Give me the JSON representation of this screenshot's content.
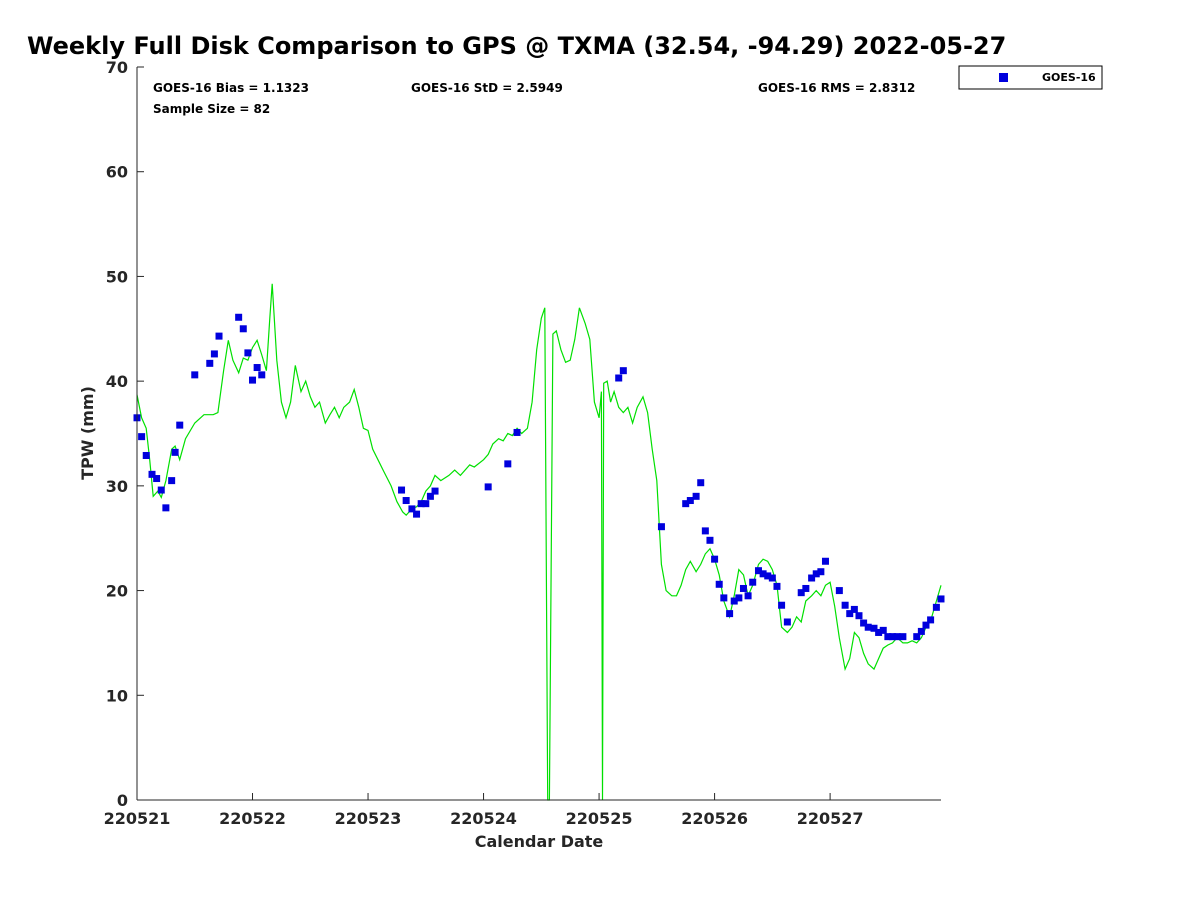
{
  "chart_data": {
    "type": "scatter",
    "title": "Weekly Full Disk Comparison to GPS @ TXMA (32.54, -94.29) 2022-05-27",
    "xlabel": "Calendar Date",
    "ylabel": "TPW (mm)",
    "xlim": [
      220521,
      220527.96
    ],
    "ylim": [
      0,
      70
    ],
    "yticks": [
      0,
      10,
      20,
      30,
      40,
      50,
      60,
      70
    ],
    "xticks": [
      {
        "value": 220521,
        "label": "220521"
      },
      {
        "value": 220522,
        "label": "220522"
      },
      {
        "value": 220523,
        "label": "220523"
      },
      {
        "value": 220524,
        "label": "220524"
      },
      {
        "value": 220525,
        "label": "220525"
      },
      {
        "value": 220526,
        "label": "220526"
      },
      {
        "value": 220527,
        "label": "220527"
      }
    ],
    "grid": false,
    "legend_position": "top-right",
    "stats": {
      "bias": "GOES-16 Bias = 1.1323",
      "std": "GOES-16 StD = 2.5949",
      "rms": "GOES-16 RMS = 2.8312",
      "sample_size": "Sample Size = 82"
    },
    "series": [
      {
        "name": "GOES-16",
        "kind": "scatter",
        "color": "#0000dd",
        "points": [
          [
            220521.0,
            36.5
          ],
          [
            220521.04,
            34.7
          ],
          [
            220521.08,
            32.9
          ],
          [
            220521.13,
            31.1
          ],
          [
            220521.17,
            30.7
          ],
          [
            220521.21,
            29.6
          ],
          [
            220521.25,
            27.9
          ],
          [
            220521.3,
            30.5
          ],
          [
            220521.33,
            33.2
          ],
          [
            220521.37,
            35.8
          ],
          [
            220521.5,
            40.6
          ],
          [
            220521.63,
            41.7
          ],
          [
            220521.67,
            42.6
          ],
          [
            220521.71,
            44.3
          ],
          [
            220521.88,
            46.1
          ],
          [
            220521.92,
            45.0
          ],
          [
            220521.96,
            42.7
          ],
          [
            220522.0,
            40.1
          ],
          [
            220522.04,
            41.3
          ],
          [
            220522.08,
            40.6
          ],
          [
            220523.29,
            29.6
          ],
          [
            220523.33,
            28.6
          ],
          [
            220523.38,
            27.8
          ],
          [
            220523.42,
            27.3
          ],
          [
            220523.46,
            28.3
          ],
          [
            220523.5,
            28.3
          ],
          [
            220523.54,
            29.0
          ],
          [
            220523.58,
            29.5
          ],
          [
            220524.04,
            29.9
          ],
          [
            220524.21,
            32.1
          ],
          [
            220524.29,
            35.1
          ],
          [
            220525.17,
            40.3
          ],
          [
            220525.21,
            41.0
          ],
          [
            220525.54,
            26.1
          ],
          [
            220525.75,
            28.3
          ],
          [
            220525.79,
            28.6
          ],
          [
            220525.84,
            29.0
          ],
          [
            220525.88,
            30.3
          ],
          [
            220525.92,
            25.7
          ],
          [
            220525.96,
            24.8
          ],
          [
            220526.0,
            23.0
          ],
          [
            220526.04,
            20.6
          ],
          [
            220526.08,
            19.3
          ],
          [
            220526.13,
            17.8
          ],
          [
            220526.17,
            19.0
          ],
          [
            220526.21,
            19.3
          ],
          [
            220526.25,
            20.2
          ],
          [
            220526.29,
            19.5
          ],
          [
            220526.33,
            20.8
          ],
          [
            220526.38,
            21.9
          ],
          [
            220526.42,
            21.6
          ],
          [
            220526.46,
            21.4
          ],
          [
            220526.5,
            21.2
          ],
          [
            220526.54,
            20.4
          ],
          [
            220526.58,
            18.6
          ],
          [
            220526.63,
            17.0
          ],
          [
            220526.75,
            19.8
          ],
          [
            220526.79,
            20.2
          ],
          [
            220526.84,
            21.2
          ],
          [
            220526.88,
            21.6
          ],
          [
            220526.92,
            21.8
          ],
          [
            220526.96,
            22.8
          ],
          [
            220527.08,
            20.0
          ],
          [
            220527.13,
            18.6
          ],
          [
            220527.17,
            17.8
          ],
          [
            220527.21,
            18.2
          ],
          [
            220527.25,
            17.6
          ],
          [
            220527.29,
            16.9
          ],
          [
            220527.33,
            16.5
          ],
          [
            220527.38,
            16.4
          ],
          [
            220527.42,
            16.0
          ],
          [
            220527.46,
            16.2
          ],
          [
            220527.5,
            15.6
          ],
          [
            220527.54,
            15.6
          ],
          [
            220527.58,
            15.6
          ],
          [
            220527.63,
            15.6
          ],
          [
            220527.75,
            15.6
          ],
          [
            220527.79,
            16.1
          ],
          [
            220527.83,
            16.7
          ],
          [
            220527.87,
            17.2
          ],
          [
            220527.92,
            18.4
          ],
          [
            220527.96,
            19.2
          ]
        ]
      },
      {
        "name": "",
        "kind": "line",
        "color": "#00e000",
        "points": [
          [
            220521.0,
            38.7
          ],
          [
            220521.04,
            36.5
          ],
          [
            220521.08,
            35.5
          ],
          [
            220521.11,
            32.5
          ],
          [
            220521.14,
            29.0
          ],
          [
            220521.18,
            29.5
          ],
          [
            220521.21,
            28.9
          ],
          [
            220521.25,
            30.5
          ],
          [
            220521.3,
            33.5
          ],
          [
            220521.33,
            33.8
          ],
          [
            220521.37,
            32.5
          ],
          [
            220521.42,
            34.5
          ],
          [
            220521.5,
            36.0
          ],
          [
            220521.58,
            36.8
          ],
          [
            220521.66,
            36.8
          ],
          [
            220521.7,
            37.0
          ],
          [
            220521.75,
            41.0
          ],
          [
            220521.79,
            43.9
          ],
          [
            220521.83,
            42.0
          ],
          [
            220521.88,
            40.8
          ],
          [
            220521.92,
            42.2
          ],
          [
            220521.96,
            42.0
          ],
          [
            220522.0,
            43.2
          ],
          [
            220522.04,
            43.9
          ],
          [
            220522.08,
            42.5
          ],
          [
            220522.12,
            41.0
          ],
          [
            220522.15,
            46.0
          ],
          [
            220522.17,
            49.3
          ],
          [
            220522.21,
            42.0
          ],
          [
            220522.25,
            38.0
          ],
          [
            220522.29,
            36.5
          ],
          [
            220522.33,
            38.0
          ],
          [
            220522.37,
            41.5
          ],
          [
            220522.42,
            39.0
          ],
          [
            220522.46,
            40.0
          ],
          [
            220522.5,
            38.5
          ],
          [
            220522.54,
            37.5
          ],
          [
            220522.58,
            38.0
          ],
          [
            220522.63,
            36.0
          ],
          [
            220522.67,
            36.8
          ],
          [
            220522.71,
            37.5
          ],
          [
            220522.75,
            36.5
          ],
          [
            220522.79,
            37.5
          ],
          [
            220522.84,
            38.0
          ],
          [
            220522.88,
            39.2
          ],
          [
            220522.92,
            37.5
          ],
          [
            220522.96,
            35.5
          ],
          [
            220523.0,
            35.3
          ],
          [
            220523.04,
            33.5
          ],
          [
            220523.13,
            31.5
          ],
          [
            220523.2,
            30.0
          ],
          [
            220523.25,
            28.5
          ],
          [
            220523.3,
            27.5
          ],
          [
            220523.33,
            27.2
          ],
          [
            220523.38,
            27.8
          ],
          [
            220523.42,
            28.0
          ],
          [
            220523.46,
            28.5
          ],
          [
            220523.5,
            29.5
          ],
          [
            220523.54,
            30.0
          ],
          [
            220523.58,
            31.0
          ],
          [
            220523.63,
            30.5
          ],
          [
            220523.7,
            31.0
          ],
          [
            220523.75,
            31.5
          ],
          [
            220523.8,
            31.0
          ],
          [
            220523.88,
            32.0
          ],
          [
            220523.92,
            31.8
          ],
          [
            220524.0,
            32.5
          ],
          [
            220524.04,
            33.0
          ],
          [
            220524.08,
            34.0
          ],
          [
            220524.13,
            34.5
          ],
          [
            220524.17,
            34.3
          ],
          [
            220524.21,
            35.0
          ],
          [
            220524.25,
            34.8
          ],
          [
            220524.29,
            35.5
          ],
          [
            220524.33,
            35.0
          ],
          [
            220524.38,
            35.5
          ],
          [
            220524.42,
            38.0
          ],
          [
            220524.46,
            43.0
          ],
          [
            220524.5,
            46.0
          ],
          [
            220524.53,
            47.0
          ],
          [
            220524.555,
            0.0
          ],
          [
            220524.57,
            0.0
          ],
          [
            220524.6,
            44.5
          ],
          [
            220524.63,
            44.8
          ],
          [
            220524.67,
            43.0
          ],
          [
            220524.71,
            41.8
          ],
          [
            220524.75,
            42.0
          ],
          [
            220524.79,
            44.0
          ],
          [
            220524.83,
            47.0
          ],
          [
            220524.88,
            45.5
          ],
          [
            220524.92,
            44.0
          ],
          [
            220524.96,
            38.0
          ],
          [
            220525.0,
            36.5
          ],
          [
            220525.02,
            39.0
          ],
          [
            220525.03,
            0.0
          ],
          [
            220525.04,
            39.8
          ],
          [
            220525.07,
            40.0
          ],
          [
            220525.1,
            38.0
          ],
          [
            220525.13,
            39.0
          ],
          [
            220525.17,
            37.5
          ],
          [
            220525.21,
            37.0
          ],
          [
            220525.25,
            37.5
          ],
          [
            220525.29,
            36.0
          ],
          [
            220525.33,
            37.5
          ],
          [
            220525.38,
            38.5
          ],
          [
            220525.42,
            37.0
          ],
          [
            220525.46,
            33.5
          ],
          [
            220525.5,
            30.5
          ],
          [
            220525.54,
            22.5
          ],
          [
            220525.58,
            20.0
          ],
          [
            220525.63,
            19.5
          ],
          [
            220525.67,
            19.5
          ],
          [
            220525.71,
            20.5
          ],
          [
            220525.75,
            22.0
          ],
          [
            220525.79,
            22.8
          ],
          [
            220525.84,
            21.8
          ],
          [
            220525.88,
            22.5
          ],
          [
            220525.92,
            23.5
          ],
          [
            220525.96,
            24.0
          ],
          [
            220526.0,
            23.0
          ],
          [
            220526.04,
            21.5
          ],
          [
            220526.08,
            19.0
          ],
          [
            220526.13,
            17.5
          ],
          [
            220526.17,
            19.5
          ],
          [
            220526.21,
            22.0
          ],
          [
            220526.25,
            21.5
          ],
          [
            220526.29,
            19.5
          ],
          [
            220526.33,
            20.5
          ],
          [
            220526.38,
            22.5
          ],
          [
            220526.42,
            23.0
          ],
          [
            220526.46,
            22.8
          ],
          [
            220526.5,
            22.0
          ],
          [
            220526.54,
            20.5
          ],
          [
            220526.58,
            16.5
          ],
          [
            220526.63,
            16.0
          ],
          [
            220526.67,
            16.5
          ],
          [
            220526.71,
            17.5
          ],
          [
            220526.75,
            17.0
          ],
          [
            220526.79,
            19.0
          ],
          [
            220526.84,
            19.5
          ],
          [
            220526.88,
            20.0
          ],
          [
            220526.92,
            19.5
          ],
          [
            220526.96,
            20.5
          ],
          [
            220527.0,
            20.8
          ],
          [
            220527.04,
            18.5
          ],
          [
            220527.08,
            15.5
          ],
          [
            220527.13,
            12.5
          ],
          [
            220527.17,
            13.5
          ],
          [
            220527.21,
            16.0
          ],
          [
            220527.25,
            15.5
          ],
          [
            220527.29,
            14.0
          ],
          [
            220527.33,
            13.0
          ],
          [
            220527.38,
            12.5
          ],
          [
            220527.42,
            13.5
          ],
          [
            220527.46,
            14.5
          ],
          [
            220527.5,
            14.8
          ],
          [
            220527.54,
            15.0
          ],
          [
            220527.58,
            15.5
          ],
          [
            220527.63,
            15.0
          ],
          [
            220527.67,
            15.0
          ],
          [
            220527.71,
            15.2
          ],
          [
            220527.75,
            15.0
          ],
          [
            220527.79,
            15.5
          ],
          [
            220527.83,
            16.5
          ],
          [
            220527.88,
            17.5
          ],
          [
            220527.92,
            19.0
          ],
          [
            220527.96,
            20.5
          ]
        ]
      }
    ]
  }
}
